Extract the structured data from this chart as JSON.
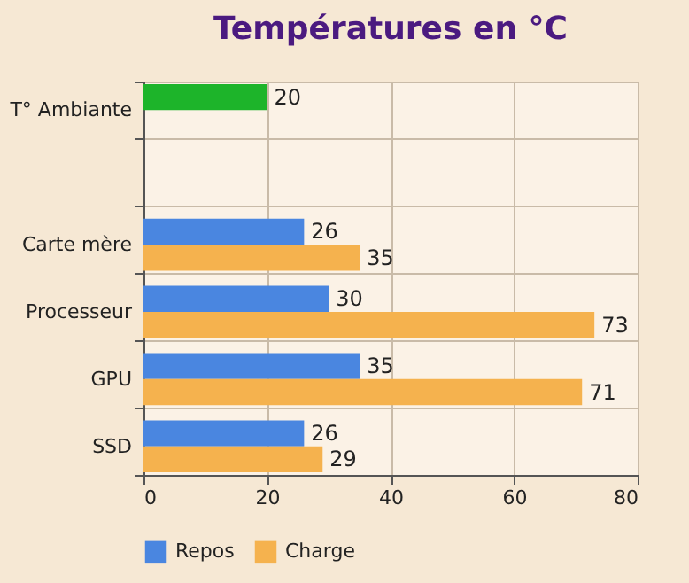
{
  "chart_data": {
    "type": "bar",
    "orientation": "horizontal",
    "title": "Températures en °C",
    "categories": [
      "T° Ambiante",
      null,
      "Carte mère",
      "Processeur",
      "GPU",
      "SSD"
    ],
    "series": [
      {
        "color": "#1db42a",
        "values": [
          20,
          null,
          null,
          null,
          null,
          null
        ]
      },
      {
        "name": "Repos",
        "color": "#4a86e0",
        "values": [
          null,
          null,
          26,
          30,
          35,
          26
        ]
      },
      {
        "name": "Charge",
        "color": "#f5b24e",
        "values": [
          null,
          null,
          35,
          73,
          71,
          29
        ]
      }
    ],
    "xlim": [
      0,
      80
    ],
    "xticks": [
      0,
      20,
      40,
      60,
      80
    ],
    "grid": true,
    "legend": "bottom",
    "data_labels": true
  }
}
